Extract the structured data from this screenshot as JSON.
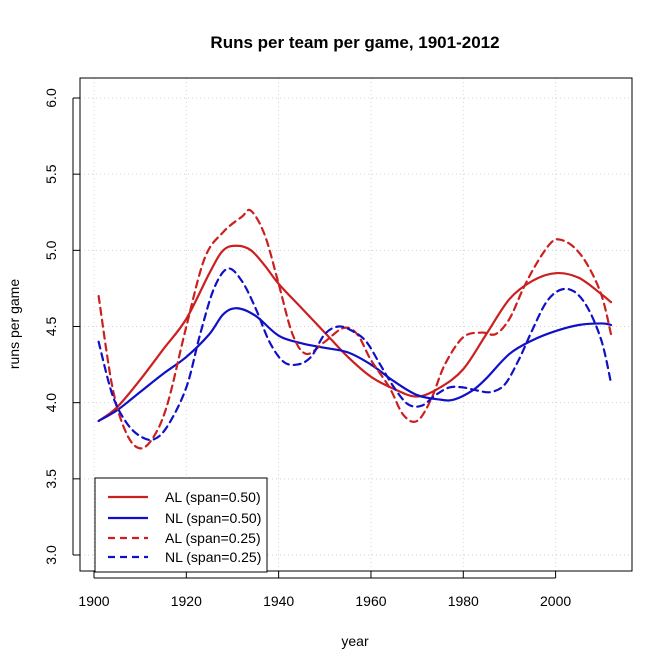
{
  "chart_data": {
    "type": "line",
    "title": "Runs per team per game, 1901-2012",
    "xlabel": "year",
    "ylabel": "runs per game",
    "xlim": [
      1900,
      2012
    ],
    "ylim": [
      3.0,
      6.0
    ],
    "x_ticks": [
      1900,
      1920,
      1940,
      1960,
      1980,
      2000
    ],
    "y_ticks": [
      3.0,
      3.5,
      4.0,
      4.5,
      5.0,
      5.5,
      6.0
    ],
    "x_tick_labels": [
      "1900",
      "1920",
      "1940",
      "1960",
      "1980",
      "2000"
    ],
    "y_tick_labels": [
      "3.0",
      "3.5",
      "4.0",
      "4.5",
      "5.0",
      "5.5",
      "6.0"
    ],
    "grid": true,
    "legend_position": "bottom-left",
    "series": [
      {
        "name": "AL (span=0.50)",
        "color": "#cc1f1f",
        "dash": "solid",
        "x": [
          1901,
          1905,
          1910,
          1915,
          1920,
          1925,
          1928,
          1931,
          1934,
          1937,
          1940,
          1945,
          1950,
          1955,
          1960,
          1965,
          1970,
          1975,
          1980,
          1985,
          1990,
          1995,
          2000,
          2005,
          2010,
          2012
        ],
        "y": [
          3.88,
          3.97,
          4.15,
          4.35,
          4.55,
          4.85,
          5.0,
          5.03,
          5.0,
          4.9,
          4.78,
          4.62,
          4.46,
          4.3,
          4.17,
          4.09,
          4.04,
          4.1,
          4.22,
          4.45,
          4.68,
          4.8,
          4.85,
          4.82,
          4.71,
          4.66
        ]
      },
      {
        "name": "NL (span=0.50)",
        "color": "#1010c8",
        "dash": "solid",
        "x": [
          1901,
          1905,
          1910,
          1915,
          1920,
          1925,
          1928,
          1931,
          1935,
          1940,
          1945,
          1950,
          1955,
          1960,
          1965,
          1970,
          1975,
          1978,
          1982,
          1985,
          1990,
          1995,
          2000,
          2005,
          2010,
          2012
        ],
        "y": [
          3.88,
          3.95,
          4.07,
          4.19,
          4.3,
          4.45,
          4.58,
          4.62,
          4.57,
          4.44,
          4.39,
          4.36,
          4.33,
          4.25,
          4.14,
          4.05,
          4.02,
          4.02,
          4.08,
          4.16,
          4.32,
          4.41,
          4.47,
          4.51,
          4.52,
          4.51
        ]
      },
      {
        "name": "AL (span=0.25)",
        "color": "#cc1f1f",
        "dash": "dashed",
        "x": [
          1901,
          1904,
          1907,
          1910,
          1913,
          1916,
          1920,
          1924,
          1928,
          1932,
          1934,
          1937,
          1940,
          1943,
          1946,
          1950,
          1954,
          1957,
          1960,
          1964,
          1967,
          1970,
          1973,
          1976,
          1980,
          1984,
          1987,
          1990,
          1993,
          1996,
          1999,
          2001,
          2004,
          2007,
          2010,
          2012
        ],
        "y": [
          4.7,
          4.1,
          3.8,
          3.7,
          3.78,
          4.0,
          4.5,
          4.95,
          5.12,
          5.22,
          5.26,
          5.1,
          4.78,
          4.45,
          4.32,
          4.4,
          4.49,
          4.45,
          4.28,
          4.1,
          3.92,
          3.88,
          4.02,
          4.25,
          4.43,
          4.46,
          4.45,
          4.55,
          4.75,
          4.92,
          5.05,
          5.07,
          5.02,
          4.9,
          4.7,
          4.45
        ]
      },
      {
        "name": "NL (span=0.25)",
        "color": "#1010c8",
        "dash": "dashed",
        "x": [
          1901,
          1904,
          1907,
          1910,
          1913,
          1916,
          1920,
          1923,
          1926,
          1929,
          1932,
          1935,
          1938,
          1941,
          1944,
          1947,
          1950,
          1953,
          1956,
          1959,
          1962,
          1965,
          1968,
          1971,
          1974,
          1977,
          1980,
          1983,
          1986,
          1989,
          1992,
          1995,
          1998,
          2001,
          2004,
          2007,
          2010,
          2012
        ],
        "y": [
          4.4,
          4.05,
          3.87,
          3.78,
          3.76,
          3.85,
          4.1,
          4.45,
          4.75,
          4.88,
          4.8,
          4.62,
          4.4,
          4.27,
          4.25,
          4.3,
          4.45,
          4.5,
          4.47,
          4.4,
          4.25,
          4.1,
          3.99,
          3.98,
          4.05,
          4.1,
          4.1,
          4.08,
          4.07,
          4.12,
          4.28,
          4.48,
          4.66,
          4.74,
          4.73,
          4.62,
          4.4,
          4.13
        ]
      }
    ]
  }
}
